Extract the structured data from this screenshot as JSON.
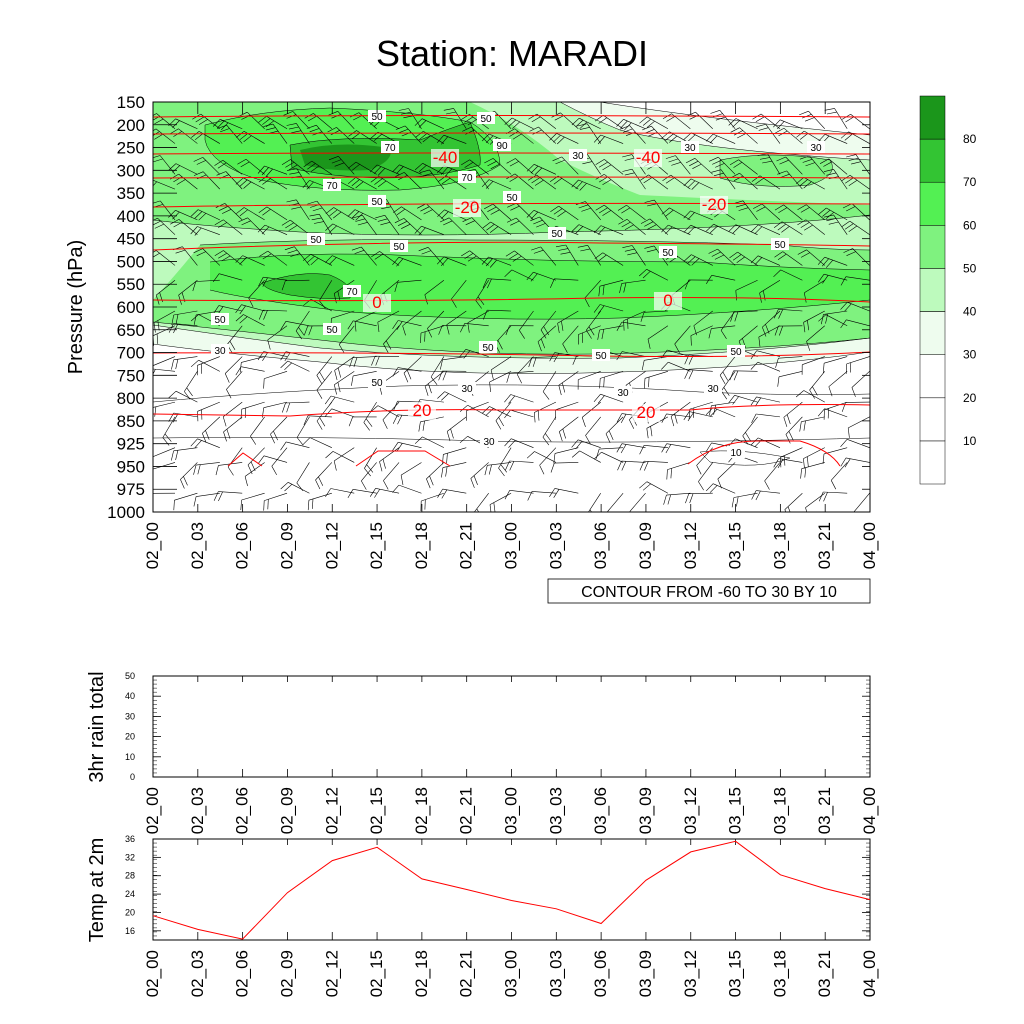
{
  "title": "Station: MARADI",
  "cross_section": {
    "ylabel": "Pressure (hPa)",
    "info_label": "CONTOUR FROM -60 TO 30 BY 10",
    "pressure_levels": [
      "150",
      "200",
      "250",
      "300",
      "350",
      "400",
      "450",
      "500",
      "550",
      "600",
      "650",
      "700",
      "750",
      "800",
      "850",
      "925",
      "950",
      "975",
      "1000"
    ],
    "time_labels": [
      "02_00",
      "02_03",
      "02_06",
      "02_09",
      "02_12",
      "02_15",
      "02_18",
      "02_21",
      "03_00",
      "03_03",
      "03_06",
      "03_09",
      "03_12",
      "03_15",
      "03_18",
      "03_21",
      "04_00"
    ],
    "labelbar": {
      "levels": [
        "10",
        "20",
        "30",
        "40",
        "50",
        "60",
        "70",
        "80"
      ],
      "colors": [
        "#ffffff",
        "#ffffff",
        "#ffffff",
        "#eefcee",
        "#bdfabd",
        "#7ff27f",
        "#53f053",
        "#33c433",
        "#1b961b"
      ]
    },
    "shade_colors": {
      "c30": "#eefcee",
      "c40": "#bdfabd",
      "c50": "#7ff27f",
      "c60": "#53f053",
      "c70": "#33c433",
      "c80": "#1b961b"
    },
    "temp_line_color": "#ff0000",
    "temperature_labels": [
      "-40",
      "-40",
      "-20",
      "-20",
      "0",
      "0",
      "20",
      "20"
    ],
    "humidity_labels": [
      "50",
      "50",
      "70",
      "90",
      "30",
      "30",
      "30",
      "70",
      "70",
      "50",
      "50",
      "50",
      "50",
      "50",
      "50",
      "50",
      "70",
      "50",
      "50",
      "50",
      "30",
      "50",
      "50",
      "50",
      "30",
      "30",
      "30",
      "30",
      "10",
      "10"
    ]
  },
  "chart_data": [
    {
      "type": "line",
      "title": "",
      "ylabel": "3hr rain total",
      "ylim": [
        0,
        50
      ],
      "yticks": [
        "0",
        "10",
        "20",
        "30",
        "40",
        "50"
      ],
      "x": [
        "02_00",
        "02_03",
        "02_06",
        "02_09",
        "02_12",
        "02_15",
        "02_18",
        "02_21",
        "03_00",
        "03_03",
        "03_06",
        "03_09",
        "03_12",
        "03_15",
        "03_18",
        "03_21",
        "04_00"
      ],
      "values": [
        0,
        0,
        0,
        0,
        0,
        0,
        0,
        0,
        0,
        0,
        0,
        0,
        0,
        0,
        0,
        0,
        0
      ]
    },
    {
      "type": "line",
      "title": "",
      "ylabel": "Temp at 2m",
      "ylim": [
        14,
        36
      ],
      "yticks": [
        "16",
        "20",
        "24",
        "28",
        "32",
        "36"
      ],
      "x": [
        "02_00",
        "02_03",
        "02_06",
        "02_09",
        "02_12",
        "02_15",
        "02_18",
        "02_21",
        "03_00",
        "03_03",
        "03_06",
        "03_09",
        "03_12",
        "03_15",
        "03_18",
        "03_21",
        "04_00"
      ],
      "values": [
        19.3,
        16.3,
        14.2,
        24.3,
        31.3,
        34.2,
        27.3,
        25.0,
        22.6,
        20.8,
        17.6,
        27.0,
        33.2,
        35.5,
        28.2,
        25.2,
        22.8
      ],
      "color": "#ff0000"
    }
  ]
}
